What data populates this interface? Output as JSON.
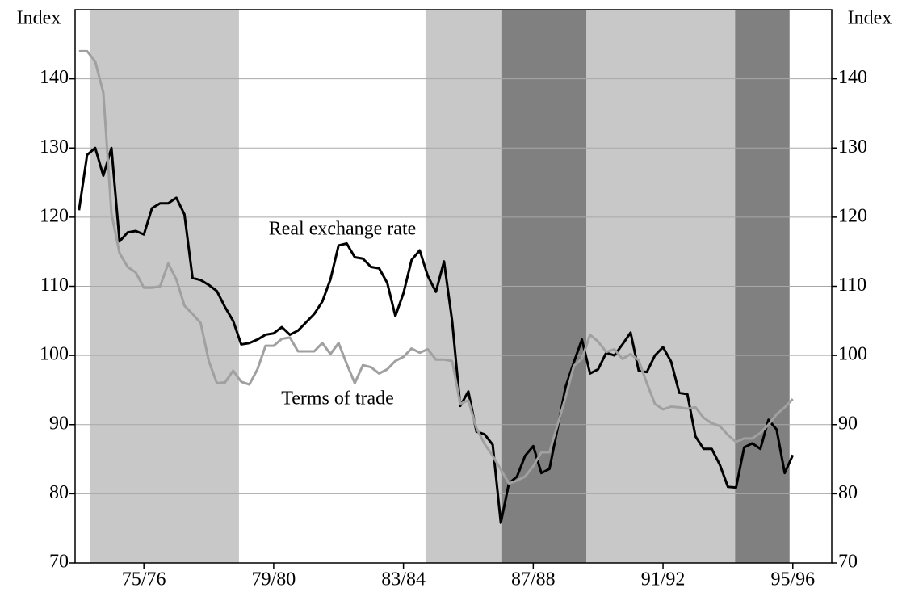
{
  "chart_data": {
    "type": "line",
    "y_label": "Index",
    "y2_label": "Index",
    "annotations": [
      "Real exchange rate",
      "Terms of trade"
    ],
    "x": [
      1974,
      1974.25,
      1974.5,
      1974.75,
      1975,
      1975.25,
      1975.5,
      1975.75,
      1976,
      1976.25,
      1976.5,
      1976.75,
      1977,
      1977.25,
      1977.5,
      1977.75,
      1978,
      1978.25,
      1978.5,
      1978.75,
      1979,
      1979.25,
      1979.5,
      1979.75,
      1980,
      1980.25,
      1980.5,
      1980.75,
      1981,
      1981.25,
      1981.5,
      1981.75,
      1982,
      1982.25,
      1982.5,
      1982.75,
      1983,
      1983.25,
      1983.5,
      1983.75,
      1984,
      1984.25,
      1984.5,
      1984.75,
      1985,
      1985.25,
      1985.5,
      1985.75,
      1986,
      1986.25,
      1986.5,
      1986.75,
      1987,
      1987.25,
      1987.5,
      1987.75,
      1988,
      1988.25,
      1988.5,
      1988.75,
      1989,
      1989.25,
      1989.5,
      1989.75,
      1990,
      1990.25,
      1990.5,
      1990.75,
      1991,
      1991.25,
      1991.5,
      1991.75,
      1992,
      1992.25,
      1992.5,
      1992.75,
      1993,
      1993.25,
      1993.5,
      1993.75,
      1994,
      1994.25,
      1994.5,
      1994.75,
      1995,
      1995.25,
      1995.5,
      1995.75,
      1996
    ],
    "series": [
      {
        "name": "Real exchange rate",
        "color": "#000000",
        "values": [
          121,
          129,
          130,
          126,
          130,
          116.5,
          117.8,
          118,
          117.5,
          121.3,
          122,
          122,
          122.8,
          120.4,
          111.2,
          110.9,
          110.2,
          109.3,
          107,
          105,
          101.6,
          101.8,
          102.3,
          103,
          103.2,
          104.1,
          103,
          103.6,
          104.8,
          106,
          107.8,
          111,
          115.9,
          116.2,
          114.2,
          114,
          112.8,
          112.6,
          110.5,
          105.7,
          109,
          113.8,
          115.2,
          111.5,
          109.2,
          113.6,
          105,
          92.7,
          94.8,
          89,
          88.6,
          87.1,
          75.8,
          81.5,
          82.5,
          85.5,
          86.9,
          83,
          83.6,
          89.5,
          95.5,
          99,
          102.3,
          97.4,
          98,
          100.4,
          100,
          101.6,
          103.3,
          97.8,
          97.6,
          100,
          101.2,
          99.1,
          94.6,
          94.4,
          88.3,
          86.5,
          86.5,
          84.2,
          81,
          80.9,
          86.7,
          87.3,
          86.5,
          90.7,
          89.3,
          83,
          85.6
        ]
      },
      {
        "name": "Terms of trade",
        "color": "#a0a0a0",
        "values": [
          144,
          144,
          142.5,
          138,
          120.5,
          114.8,
          112.8,
          112,
          109.8,
          109.8,
          110,
          113.3,
          111,
          107.2,
          106,
          104.7,
          99.2,
          96,
          96.1,
          97.8,
          96.2,
          95.8,
          98,
          101.4,
          101.4,
          102.4,
          102.6,
          100.6,
          100.6,
          100.6,
          101.8,
          100.2,
          101.8,
          98.8,
          96,
          98.6,
          98.3,
          97.4,
          98,
          99.2,
          99.8,
          101,
          100.4,
          100.9,
          99.4,
          99.4,
          99.2,
          93,
          93.5,
          89.5,
          87.2,
          85.5,
          83.5,
          81.5,
          81.9,
          82.5,
          84,
          86,
          86,
          90,
          94,
          98.5,
          99.5,
          103,
          102,
          100.5,
          100.9,
          99.5,
          100.2,
          99.3,
          96,
          93,
          92.2,
          92.6,
          92.5,
          92.3,
          92.5,
          91,
          90.2,
          89.8,
          88.5,
          87.5,
          88,
          88,
          88.8,
          90,
          91.5,
          92.5,
          93.7
        ]
      }
    ],
    "shaded_regions": [
      {
        "from": 1974.35,
        "to": 1978.93,
        "color": "#c8c8c8"
      },
      {
        "from": 1984.68,
        "to": 1987.04,
        "color": "#c8c8c8"
      },
      {
        "from": 1987.04,
        "to": 1989.64,
        "color": "#808080"
      },
      {
        "from": 1989.64,
        "to": 1994.22,
        "color": "#c8c8c8"
      },
      {
        "from": 1994.22,
        "to": 1995.9,
        "color": "#808080"
      }
    ],
    "xlim": [
      1973.88,
      1997.2
    ],
    "xticks": [
      {
        "value": 1976,
        "label": "75/76"
      },
      {
        "value": 1980,
        "label": "79/80"
      },
      {
        "value": 1984,
        "label": "83/84"
      },
      {
        "value": 1988,
        "label": "87/88"
      },
      {
        "value": 1992,
        "label": "91/92"
      },
      {
        "value": 1996,
        "label": "95/96"
      }
    ],
    "ylim": [
      70,
      150
    ],
    "yticks": [
      70,
      80,
      90,
      100,
      110,
      120,
      130,
      140
    ],
    "y2lim": [
      70,
      150
    ],
    "y2ticks": [
      70,
      80,
      90,
      100,
      110,
      120,
      130,
      140
    ],
    "grid": true
  }
}
